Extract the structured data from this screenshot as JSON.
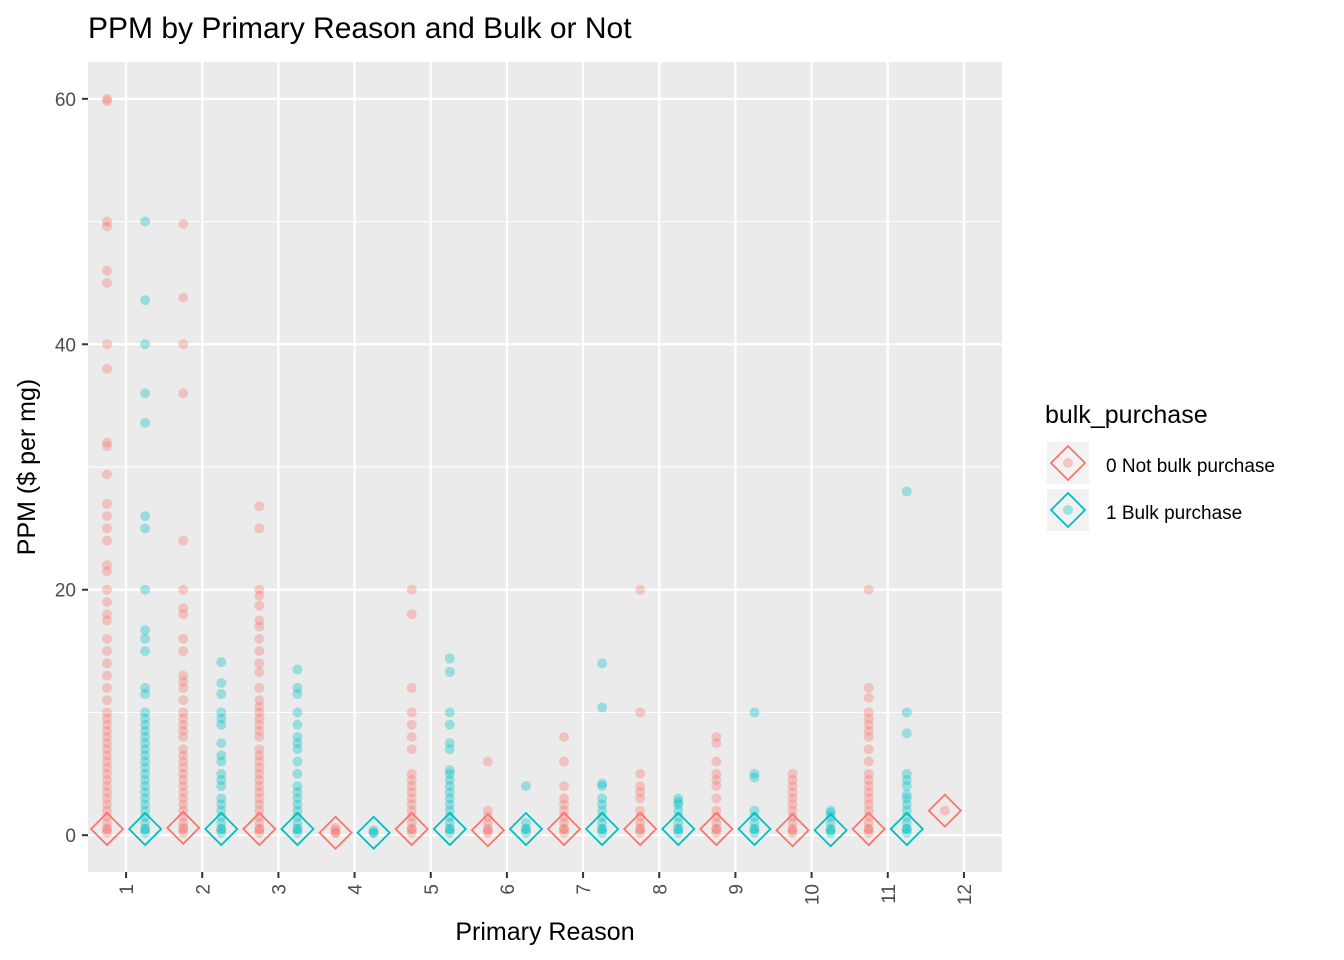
{
  "chart_data": {
    "type": "scatter",
    "title": "PPM by Primary Reason and Bulk or Not",
    "xlabel": "Primary Reason",
    "ylabel": "PPM ($ per mg)",
    "categories": [
      "1",
      "2",
      "3",
      "4",
      "5",
      "6",
      "7",
      "8",
      "9",
      "10",
      "11",
      "12"
    ],
    "y_ticks": [
      0,
      20,
      40,
      60
    ],
    "ylim": [
      -3,
      63
    ],
    "grid": true,
    "legend": {
      "title": "bulk_purchase",
      "position": "right",
      "entries": [
        "0 Not bulk purchase",
        "1 Bulk purchase"
      ]
    },
    "colors": {
      "not_bulk": "#F8766D",
      "bulk": "#00BFC4",
      "panel": "#EBEBEB"
    },
    "series": [
      {
        "key": "not_bulk",
        "points": {
          "1": [
            60,
            59.8,
            50,
            49.6,
            46,
            45,
            40,
            38,
            32,
            31.7,
            29.4,
            27,
            26,
            25,
            24,
            22,
            21.5,
            20,
            19,
            18,
            17.5,
            16,
            15,
            14,
            13,
            12,
            11,
            10,
            9.5,
            9,
            8.5,
            8,
            7.5,
            7,
            6.5,
            6,
            5.5,
            5,
            4.5,
            4,
            3.5,
            3,
            2.5,
            2,
            1.5,
            1,
            0.5,
            0.2
          ],
          "2": [
            49.8,
            43.8,
            40,
            36,
            24,
            20,
            18.5,
            18,
            16,
            15,
            13,
            12.5,
            12,
            11,
            10,
            9.5,
            9,
            8.5,
            8,
            7,
            6.5,
            6,
            5.5,
            5,
            4.5,
            4,
            3.5,
            3,
            2.5,
            2,
            1.5,
            1,
            0.5,
            0.2
          ],
          "3": [
            26.8,
            25,
            20,
            19.5,
            18.7,
            17.5,
            17,
            16,
            15,
            14,
            13.3,
            12,
            11,
            10.5,
            10,
            9.5,
            9,
            8.5,
            8,
            7,
            6.5,
            6,
            5.5,
            5,
            4.5,
            4,
            3.5,
            3,
            2.5,
            2,
            1.5,
            1,
            0.5,
            0.2
          ],
          "4": [
            0.6,
            0.4,
            0.2
          ],
          "5": [
            20,
            18,
            12,
            10,
            9,
            8,
            7,
            5,
            4.5,
            4,
            3.5,
            3,
            2.5,
            2,
            1.5,
            1,
            0.5,
            0.2
          ],
          "6": [
            6,
            2,
            1.5,
            1,
            0.5,
            0.2
          ],
          "7": [
            8,
            6,
            4,
            3,
            2.5,
            2,
            1.5,
            1,
            0.5,
            0.2
          ],
          "8": [
            20,
            10,
            5,
            4,
            3.5,
            3,
            2,
            1.5,
            1,
            0.5,
            0.2
          ],
          "9": [
            8,
            7.5,
            6,
            5,
            4.5,
            4,
            3,
            2,
            1.5,
            1,
            0.5,
            0.2
          ],
          "10": [
            5,
            4.5,
            4,
            3.5,
            3,
            2.5,
            2,
            1.5,
            1,
            0.5,
            0.2
          ],
          "11": [
            20,
            12,
            11.2,
            10,
            9.5,
            9,
            8.5,
            8,
            7,
            6,
            5,
            4.5,
            4,
            3.5,
            3,
            2.5,
            2,
            1.5,
            1,
            0.5,
            0.2
          ]
        },
        "means": {
          "1": 0.5,
          "2": 0.6,
          "3": 0.5,
          "4": 0.2,
          "5": 0.5,
          "6": 0.4,
          "7": 0.5,
          "8": 0.5,
          "9": 0.5,
          "10": 0.4,
          "11": 0.5,
          "12": 2.0
        }
      },
      {
        "key": "bulk",
        "points": {
          "1": [
            50,
            43.6,
            40,
            36,
            33.6,
            26,
            25,
            20,
            16.7,
            16,
            15,
            12,
            11.5,
            10,
            9.5,
            9,
            8.5,
            8,
            7.5,
            7,
            6.5,
            6,
            5.5,
            5,
            4.5,
            4,
            3.5,
            3,
            2.5,
            2,
            1.5,
            1,
            0.5,
            0.2
          ],
          "2": [
            14.1,
            12.4,
            11.5,
            10,
            9.5,
            9,
            7.5,
            6.5,
            6,
            5,
            4.5,
            4,
            3,
            2.5,
            2,
            1.5,
            1,
            0.5,
            0.2
          ],
          "3": [
            13.5,
            12,
            11.5,
            10,
            9,
            8,
            7.5,
            7,
            6,
            5,
            4,
            3.5,
            3,
            2.5,
            2,
            1.5,
            1,
            0.5,
            0.2
          ],
          "4": [
            0.4,
            0.2
          ],
          "5": [
            14.4,
            13.3,
            10,
            9,
            7.5,
            7,
            5.3,
            5,
            4.5,
            4,
            3.5,
            3,
            2.5,
            2,
            1.5,
            1,
            0.5,
            0.2
          ],
          "6": [
            4,
            1,
            0.5,
            0.2
          ],
          "7": [
            14,
            10.4,
            4.2,
            4,
            3,
            2.5,
            2,
            1.5,
            1,
            0.5,
            0.2
          ],
          "8": [
            3,
            2.7,
            2.5,
            2,
            1.5,
            1,
            0.5,
            0.2
          ],
          "9": [
            10,
            5,
            4.7,
            2,
            1.5,
            1,
            0.5,
            0.2
          ],
          "10": [
            2,
            1.8,
            1.5,
            1,
            0.5,
            0.2
          ],
          "11": [
            28,
            10,
            8.3,
            5,
            4.5,
            4,
            3.3,
            3,
            2.5,
            2,
            1.5,
            1,
            0.5,
            0.2
          ]
        },
        "means": {
          "1": 0.5,
          "2": 0.5,
          "3": 0.5,
          "4": 0.2,
          "5": 0.5,
          "6": 0.5,
          "7": 0.5,
          "8": 0.5,
          "9": 0.5,
          "10": 0.4,
          "11": 0.5
        }
      }
    ]
  }
}
